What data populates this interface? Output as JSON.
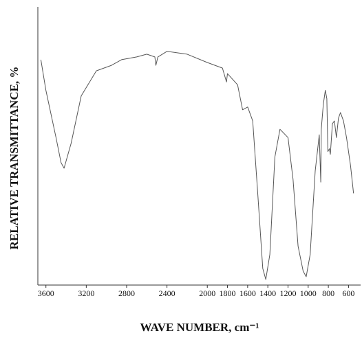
{
  "chart_data": {
    "type": "line",
    "xlabel": "WAVE NUMBER, cm⁻¹",
    "ylabel": "RELATIVE TRANSMITTANCE, %",
    "x": [
      3650,
      3600,
      3500,
      3450,
      3420,
      3350,
      3250,
      3100,
      2950,
      2850,
      2700,
      2600,
      2520,
      2510,
      2490,
      2400,
      2200,
      2000,
      1850,
      1810,
      1800,
      1700,
      1650,
      1600,
      1550,
      1500,
      1450,
      1420,
      1380,
      1330,
      1280,
      1200,
      1150,
      1100,
      1050,
      1020,
      980,
      930,
      890,
      875,
      870,
      850,
      830,
      815,
      805,
      790,
      780,
      760,
      740,
      720,
      700,
      680,
      650,
      620,
      580,
      550
    ],
    "series": [
      {
        "color": "#555555",
        "values": [
          81,
          70,
          53,
          44,
          42,
          51,
          68,
          77,
          79,
          81,
          82,
          83,
          82,
          79,
          82,
          84,
          83,
          80,
          78,
          73,
          76,
          72,
          63,
          64,
          59,
          33,
          6,
          2,
          11,
          46,
          56,
          53,
          38,
          14,
          5,
          3,
          11,
          41,
          54,
          37,
          56,
          65,
          70,
          67,
          48,
          49,
          47,
          58,
          59,
          53,
          60,
          62,
          59,
          53,
          43,
          33
        ]
      }
    ],
    "xlim": [
      3680,
      480
    ],
    "ylim": [
      0,
      100
    ],
    "xticks": [
      3600,
      3200,
      2800,
      2400,
      2000,
      1800,
      1600,
      1400,
      1200,
      1000,
      800,
      600
    ]
  }
}
